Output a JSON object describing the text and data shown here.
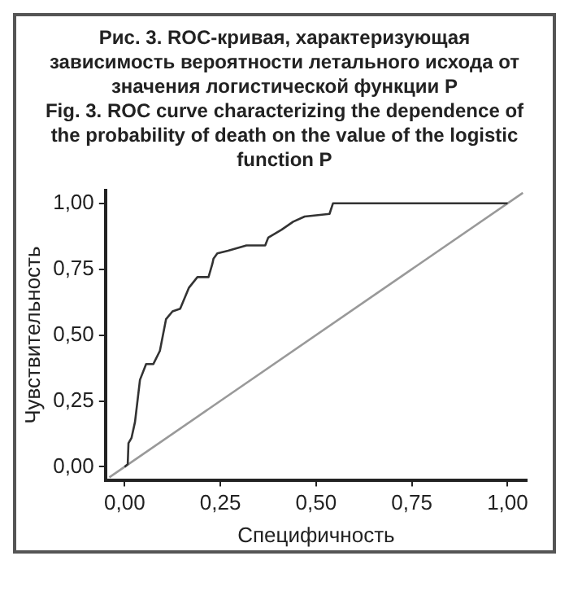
{
  "chart_data": {
    "type": "line",
    "title": "Рис. 3. ROC-кривая, характеризующая зависимость вероятности летального исхода от значения логистической функции P",
    "subtitle": "Fig. 3. ROC curve characterizing the dependence of the probability of death on the value of the logistic function P",
    "xlabel": "Специфичность",
    "ylabel": "Чувствительность",
    "series": [
      {
        "color": "#333333",
        "x": [
          0.0,
          0.008,
          0.01,
          0.018,
          0.027,
          0.04,
          0.056,
          0.075,
          0.092,
          0.108,
          0.125,
          0.145,
          0.168,
          0.19,
          0.219,
          0.229,
          0.232,
          0.242,
          0.27,
          0.318,
          0.367,
          0.375,
          0.41,
          0.44,
          0.47,
          0.535,
          0.544,
          1.0
        ],
        "values": [
          0.0,
          0.01,
          0.09,
          0.11,
          0.17,
          0.33,
          0.39,
          0.39,
          0.44,
          0.56,
          0.59,
          0.6,
          0.68,
          0.72,
          0.72,
          0.77,
          0.79,
          0.81,
          0.82,
          0.84,
          0.84,
          0.87,
          0.9,
          0.93,
          0.95,
          0.96,
          1.0,
          1.0
        ]
      },
      {
        "color": "#999999",
        "x": [
          -0.04,
          1.04
        ],
        "values": [
          -0.04,
          1.04
        ]
      }
    ],
    "xlim": [
      -0.05,
      1.05
    ],
    "ylim": [
      -0.05,
      1.05
    ],
    "xticks": [
      {
        "value": 0,
        "label": "0,00"
      },
      {
        "value": 0.25,
        "label": "0,25"
      },
      {
        "value": 0.5,
        "label": "0,50"
      },
      {
        "value": 0.75,
        "label": "0,75"
      },
      {
        "value": 1,
        "label": "1,00"
      }
    ],
    "yticks": [
      {
        "value": 0,
        "label": "0,00"
      },
      {
        "value": 0.25,
        "label": "0,25"
      },
      {
        "value": 0.5,
        "label": "0,50"
      },
      {
        "value": 0.75,
        "label": "0,75"
      },
      {
        "value": 1,
        "label": "1,00"
      }
    ]
  }
}
